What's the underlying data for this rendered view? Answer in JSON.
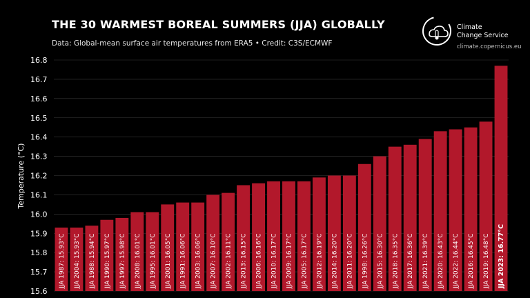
{
  "header": {
    "title": "THE 30 WARMEST BOREAL SUMMERS (JJA) GLOBALLY",
    "subtitle": "Data: Global-mean surface air temperatures from ERA5 • Credit: C3S/ECMWF"
  },
  "logo": {
    "line1": "Climate",
    "line2": "Change Service",
    "url": "climate.copernicus.eu",
    "icon": "copernicus-cloud-thermometer-icon"
  },
  "colors": {
    "background": "#000000",
    "bar": "#b2182b",
    "grid": "#3a3a3a",
    "text": "#ffffff"
  },
  "chart_data": {
    "type": "bar",
    "title": "THE 30 WARMEST BOREAL SUMMERS (JJA) GLOBALLY",
    "xlabel": "",
    "ylabel": "Temperature (°C)",
    "ylim": [
      15.6,
      16.8
    ],
    "yticks": [
      "15.6",
      "15.7",
      "15.8",
      "15.9",
      "16.0",
      "16.1",
      "16.2",
      "16.3",
      "16.4",
      "16.5",
      "16.6",
      "16.7",
      "16.8"
    ],
    "grid": true,
    "categories": [
      "JJA 1987",
      "JJA 2004",
      "JJA 1988",
      "JJA 1990",
      "JJA 1997",
      "JJA 2008",
      "JJA 1995",
      "JJA 2001",
      "JJA 1991",
      "JJA 2003",
      "JJA 2007",
      "JJA 2002",
      "JJA 2013",
      "JJA 2006",
      "JJA 2010",
      "JJA 2009",
      "JJA 2005",
      "JJA 2012",
      "JJA 2014",
      "JJA 2011",
      "JJA 1998",
      "JJA 2015",
      "JJA 2018",
      "JJA 2017",
      "JJA 2021",
      "JJA 2020",
      "JJA 2022",
      "JJA 2016",
      "JJA 2019",
      "JJA 2023"
    ],
    "values": [
      15.93,
      15.93,
      15.94,
      15.97,
      15.98,
      16.01,
      16.01,
      16.05,
      16.06,
      16.06,
      16.1,
      16.11,
      16.15,
      16.16,
      16.17,
      16.17,
      16.17,
      16.19,
      16.2,
      16.2,
      16.26,
      16.3,
      16.35,
      16.36,
      16.39,
      16.43,
      16.44,
      16.45,
      16.48,
      16.77
    ],
    "labels": [
      "JJA 1987: 15.93°C",
      "JJA 2004: 15.93°C",
      "JJA 1988: 15.94°C",
      "JJA 1990: 15.97°C",
      "JJA 1997: 15.98°C",
      "JJA 2008: 16.01°C",
      "JJA 1995: 16.01°C",
      "JJA 2001: 16.05°C",
      "JJA 1991: 16.06°C",
      "JJA 2003: 16.06°C",
      "JJA 2007: 16.10°C",
      "JJA 2002: 16.11°C",
      "JJA 2013: 16.15°C",
      "JJA 2006: 16.16°C",
      "JJA 2010: 16.17°C",
      "JJA 2009: 16.17°C",
      "JJA 2005: 16.17°C",
      "JJA 2012: 16.19°C",
      "JJA 2014: 16.20°C",
      "JJA 2011: 16.20°C",
      "JJA 1998: 16.26°C",
      "JJA 2015: 16.30°C",
      "JJA 2018: 16.35°C",
      "JJA 2017: 16.36°C",
      "JJA 2021: 16.39°C",
      "JJA 2020: 16.43°C",
      "JJA 2022: 16.44°C",
      "JJA 2016: 16.45°C",
      "JJA 2019: 16.48°C",
      "JJA 2023: 16.77°C"
    ],
    "highlight_index": 29
  }
}
